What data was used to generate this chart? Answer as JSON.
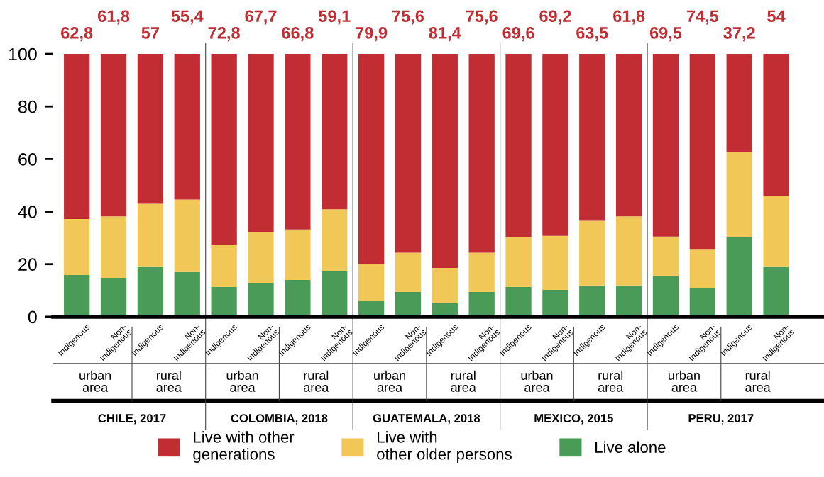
{
  "chart_data": {
    "type": "bar",
    "stacked": true,
    "categories": [
      "Indigenous",
      "Non-\nIndigenous",
      "Indigenous",
      "Non-\nIndigenous",
      "Indigenous",
      "Non-\nIndigenous",
      "Indigenous",
      "Non-\nIndigenous",
      "Indigenous",
      "Non-\nIndigenous",
      "Indigenous",
      "Non-\nIndigenous",
      "Indigenous",
      "Non-\nIndigenous",
      "Indigenous",
      "Non-\nIndigenous",
      "Indigenous",
      "Non-\nIndigenous",
      "Indigenous",
      "Non-\nIndigenous"
    ],
    "series": [
      {
        "name": "Live alone",
        "color": "#4a9b57",
        "values": [
          15.9,
          14.8,
          18.9,
          17,
          11.3,
          12.9,
          14,
          17.2,
          6.2,
          9.4,
          5.1,
          9.4,
          11.3,
          10.2,
          11.9,
          11.9,
          15.6,
          10.8,
          30.2,
          18.9
        ]
      },
      {
        "name": "Live with\nother older persons",
        "color": "#f1c758",
        "values": [
          21.3,
          23.4,
          24.1,
          27.6,
          15.9,
          19.4,
          19.2,
          23.7,
          13.9,
          15,
          13.5,
          15,
          19.1,
          20.6,
          24.6,
          26.3,
          14.9,
          14.7,
          32.6,
          27.1
        ]
      },
      {
        "name": "Live with other\ngenerations",
        "color": "#c12d33",
        "values": [
          62.8,
          61.8,
          57,
          55.4,
          72.8,
          67.7,
          66.8,
          59.1,
          79.9,
          75.6,
          81.4,
          75.6,
          69.6,
          69.2,
          63.5,
          61.8,
          69.5,
          74.5,
          37.2,
          54
        ],
        "value_labels": [
          "62,8",
          "61,8",
          "57",
          "55,4",
          "72,8",
          "67,7",
          "66,8",
          "59,1",
          "79,9",
          "75,6",
          "81,4",
          "75,6",
          "69,6",
          "69,2",
          "63,5",
          "61,8",
          "69,5",
          "74,5",
          "37,2",
          "54"
        ]
      }
    ],
    "ylim": [
      0,
      100
    ],
    "yticks": [
      0,
      20,
      40,
      60,
      80,
      100
    ],
    "grid": false,
    "legend": "bottom",
    "annotations": [
      "urban\narea",
      "rural\narea",
      "urban\narea",
      "rural\narea",
      "urban\narea",
      "rural\narea",
      "urban\narea",
      "rural\narea",
      "urban\narea",
      "rural\narea",
      "CHILE, 2017",
      "COLOMBIA, 2018",
      "GUATEMALA, 2018",
      "MEXICO, 2015",
      "PERU, 2017"
    ]
  }
}
